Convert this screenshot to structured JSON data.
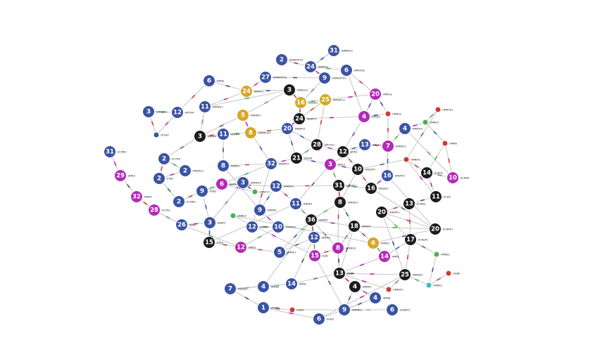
{
  "graph": {
    "colors": {
      "blue": "#3a53a4",
      "black": "#1c1c1c",
      "gold": "#d6a625",
      "magenta": "#b42ab7",
      "green": "#4caf50",
      "red": "#d03a35",
      "teal": "#3fb8b8",
      "edge": "#c9c9c9"
    },
    "nodes": [
      {
        "id": "n1",
        "num": "31",
        "color": "blue",
        "label": "HMMN03"
      },
      {
        "id": "n2",
        "num": "2",
        "color": "blue",
        "label": "HNMAPT03"
      },
      {
        "id": "n3",
        "num": "24",
        "color": "blue",
        "label": "HBMP02"
      },
      {
        "id": "n4",
        "num": "6",
        "color": "blue",
        "label": "HMRO02"
      },
      {
        "id": "n5",
        "num": "27",
        "color": "blue",
        "label": "HNMAPT02"
      },
      {
        "id": "n6",
        "num": "9",
        "color": "blue",
        "label": "HNMAPT02"
      },
      {
        "id": "n7",
        "num": "6",
        "color": "blue",
        "label": "HMNE"
      },
      {
        "id": "n8",
        "num": "24",
        "color": "gold",
        "label": "HBMO2"
      },
      {
        "id": "n9",
        "num": "3",
        "color": "black",
        "label": "HMNG01"
      },
      {
        "id": "n10",
        "num": "16",
        "color": "gold",
        "label": "HBSS01"
      },
      {
        "id": "n11",
        "num": "25",
        "color": "gold",
        "label": "HMVAP12"
      },
      {
        "id": "n12",
        "num": "20",
        "color": "magenta",
        "label": "HMNG2"
      },
      {
        "id": "n13",
        "num": "11",
        "color": "blue",
        "label": "HMNP01"
      },
      {
        "id": "n14",
        "num": "3",
        "color": "blue",
        "label": "HMNSI11"
      },
      {
        "id": "n15",
        "num": "12",
        "color": "blue",
        "label": "HNTN4"
      },
      {
        "id": "n16",
        "num": "5",
        "color": "gold",
        "label": "HMNP07"
      },
      {
        "id": "n17",
        "num": "24",
        "color": "black",
        "label": "HBAP01"
      },
      {
        "id": "n18",
        "num": "4",
        "color": "magenta",
        "label": "HMSE2"
      },
      {
        "id": "n19",
        "num": "",
        "color": "red",
        "label": "HMN02"
      },
      {
        "id": "n20",
        "num": "",
        "color": "red",
        "label": "HMNTE1"
      },
      {
        "id": "n21",
        "num": "",
        "color": "green",
        "label": "HMN03"
      },
      {
        "id": "n22",
        "num": "4",
        "color": "blue",
        "label": "HMNS01"
      },
      {
        "id": "n23",
        "num": "",
        "color": "blue",
        "label": "HTH67"
      },
      {
        "id": "n24",
        "num": "3",
        "color": "black",
        "label": "HMNP4"
      },
      {
        "id": "n25",
        "num": "11",
        "color": "blue",
        "label": "HMNP4"
      },
      {
        "id": "n26",
        "num": "8",
        "color": "gold",
        "label": "HMNPOST"
      },
      {
        "id": "n27",
        "num": "20",
        "color": "blue",
        "label": "HMNP01"
      },
      {
        "id": "n28",
        "num": "",
        "color": "red",
        "label": "HMN6"
      },
      {
        "id": "n29",
        "num": "31",
        "color": "blue",
        "label": "HCMN2"
      },
      {
        "id": "n30",
        "num": "2",
        "color": "blue",
        "label": "HCTN3"
      },
      {
        "id": "n31",
        "num": "28",
        "color": "black",
        "label": "HMTOF1"
      },
      {
        "id": "n32",
        "num": "21",
        "color": "black",
        "label": "HBSS6"
      },
      {
        "id": "n33",
        "num": "12",
        "color": "black",
        "label": "HCD1"
      },
      {
        "id": "n34",
        "num": "13",
        "color": "blue",
        "label": "HMCF1"
      },
      {
        "id": "n35",
        "num": "7",
        "color": "magenta",
        "label": "HMNE01"
      },
      {
        "id": "n36",
        "num": "8",
        "color": "blue",
        "label": "HMNP2"
      },
      {
        "id": "n37",
        "num": "32",
        "color": "blue",
        "label": "HMNP0T"
      },
      {
        "id": "n38",
        "num": "2",
        "color": "blue",
        "label": "HMNPH1"
      },
      {
        "id": "n39",
        "num": "3",
        "color": "magenta",
        "label": "HMS3"
      },
      {
        "id": "n40",
        "num": "10",
        "color": "black",
        "label": "HNSAP1"
      },
      {
        "id": "n41",
        "num": "",
        "color": "red",
        "label": "HMNI41"
      },
      {
        "id": "n42",
        "num": "14",
        "color": "black",
        "label": "HUBSS"
      },
      {
        "id": "n43",
        "num": "10",
        "color": "magenta",
        "label": "HCNNE"
      },
      {
        "id": "n44",
        "num": "29",
        "color": "magenta",
        "label": "HMKZ"
      },
      {
        "id": "n45",
        "num": "2",
        "color": "blue",
        "label": "HTN2"
      },
      {
        "id": "n46",
        "num": "6",
        "color": "magenta",
        "label": "HBP02"
      },
      {
        "id": "n47",
        "num": "3",
        "color": "blue",
        "label": "HMNP03"
      },
      {
        "id": "n48",
        "num": "",
        "color": "green",
        "label": "HMNFY2"
      },
      {
        "id": "n49",
        "num": "12",
        "color": "blue",
        "label": "HMNP01"
      },
      {
        "id": "n50",
        "num": "31",
        "color": "black",
        "label": "HMNP01"
      },
      {
        "id": "n51",
        "num": "16",
        "color": "black",
        "label": "HBSS01"
      },
      {
        "id": "n52",
        "num": "16",
        "color": "blue",
        "label": "HMSPT2"
      },
      {
        "id": "n53",
        "num": "11",
        "color": "black",
        "label": "HCD6"
      },
      {
        "id": "n54",
        "num": "32",
        "color": "magenta",
        "label": "HMN4"
      },
      {
        "id": "n55",
        "num": "9",
        "color": "blue",
        "label": "HSN2"
      },
      {
        "id": "n56",
        "num": "2",
        "color": "blue",
        "label": "HCMN3"
      },
      {
        "id": "n57",
        "num": "13",
        "color": "black",
        "label": "HCNNe"
      },
      {
        "id": "n58",
        "num": "28",
        "color": "magenta",
        "label": "HCTN2"
      },
      {
        "id": "n59",
        "num": "9",
        "color": "blue",
        "label": "HMNP4"
      },
      {
        "id": "n60",
        "num": "11",
        "color": "blue",
        "label": "HMNP3"
      },
      {
        "id": "n61",
        "num": "8",
        "color": "black",
        "label": "HMNAF1"
      },
      {
        "id": "n62",
        "num": "20",
        "color": "black",
        "label": "HMNP01"
      },
      {
        "id": "n63",
        "num": "26",
        "color": "blue",
        "label": "HBN2"
      },
      {
        "id": "n64",
        "num": "3",
        "color": "blue",
        "label": "HBNP1"
      },
      {
        "id": "n65",
        "num": "36",
        "color": "black",
        "label": "HMNP4"
      },
      {
        "id": "n66",
        "num": "18",
        "color": "black",
        "label": "HMNP4"
      },
      {
        "id": "n67",
        "num": "20",
        "color": "black",
        "label": "HCNAP1"
      },
      {
        "id": "n68",
        "num": "10",
        "color": "blue",
        "label": "HMNP01"
      },
      {
        "id": "n69",
        "num": "12",
        "color": "blue",
        "label": "HMNP0"
      },
      {
        "id": "n70",
        "num": "15",
        "color": "black",
        "label": "HTN2"
      },
      {
        "id": "n71",
        "num": "12",
        "color": "magenta",
        "label": "HMN3"
      },
      {
        "id": "n72",
        "num": "17",
        "color": "black",
        "label": "HCNaP1"
      },
      {
        "id": "n73",
        "num": "6",
        "color": "gold",
        "label": "HMNE1"
      },
      {
        "id": "n74",
        "num": "8",
        "color": "magenta",
        "label": "HMNE01"
      },
      {
        "id": "n75",
        "num": "5",
        "color": "blue",
        "label": "HMNP1"
      },
      {
        "id": "n76",
        "num": "15",
        "color": "magenta",
        "label": "HSN"
      },
      {
        "id": "n77",
        "num": "",
        "color": "green",
        "label": "HMNE2"
      },
      {
        "id": "n78",
        "num": "14",
        "color": "magenta",
        "label": "HMN2"
      },
      {
        "id": "n79",
        "num": "13",
        "color": "black",
        "label": "HSN2"
      },
      {
        "id": "n80",
        "num": "25",
        "color": "black",
        "label": "HMNEP1"
      },
      {
        "id": "n81",
        "num": "",
        "color": "red",
        "label": "HMNAT1"
      },
      {
        "id": "n82",
        "num": "7",
        "color": "blue",
        "label": "HMNSI2"
      },
      {
        "id": "n83",
        "num": "4",
        "color": "blue",
        "label": "HMNSI"
      },
      {
        "id": "n84",
        "num": "14",
        "color": "blue",
        "label": "HMN2"
      },
      {
        "id": "n85",
        "num": "4",
        "color": "black",
        "label": "HMNP3"
      },
      {
        "id": "n86",
        "num": "",
        "color": "teal",
        "label": "HMNE2"
      },
      {
        "id": "n87",
        "num": "4",
        "color": "blue",
        "label": "HMNB"
      },
      {
        "id": "n88",
        "num": "1",
        "color": "blue",
        "label": "HMNP1"
      },
      {
        "id": "n89",
        "num": "",
        "color": "red",
        "label": "HGN3"
      },
      {
        "id": "n90",
        "num": "9",
        "color": "blue",
        "label": "HMNP01"
      },
      {
        "id": "n91",
        "num": "6",
        "color": "blue",
        "label": "HGMP01"
      },
      {
        "id": "n92",
        "num": "6",
        "color": "blue",
        "label": "HGN3"
      },
      {
        "id": "n93",
        "num": "12",
        "color": "blue",
        "label": "HMNP1"
      },
      {
        "id": "n94",
        "num": "",
        "color": "green",
        "label": "HMNE1"
      },
      {
        "id": "n95",
        "num": "13",
        "color": "black",
        "label": "HSNN"
      },
      {
        "id": "n96",
        "num": "",
        "color": "red",
        "label": "HGNE"
      }
    ],
    "edges": [
      [
        "n1",
        "n3"
      ],
      [
        "n2",
        "n3"
      ],
      [
        "n3",
        "n4"
      ],
      [
        "n3",
        "n6"
      ],
      [
        "n5",
        "n6"
      ],
      [
        "n4",
        "n12"
      ],
      [
        "n6",
        "n10"
      ],
      [
        "n5",
        "n8"
      ],
      [
        "n7",
        "n8"
      ],
      [
        "n7",
        "n15"
      ],
      [
        "n14",
        "n15"
      ],
      [
        "n15",
        "n23"
      ],
      [
        "n8",
        "n9"
      ],
      [
        "n9",
        "n10"
      ],
      [
        "n10",
        "n11"
      ],
      [
        "n11",
        "n12"
      ],
      [
        "n12",
        "n18"
      ],
      [
        "n11",
        "n17"
      ],
      [
        "n9",
        "n16"
      ],
      [
        "n16",
        "n26"
      ],
      [
        "n16",
        "n24"
      ],
      [
        "n8",
        "n13"
      ],
      [
        "n13",
        "n24"
      ],
      [
        "n17",
        "n18"
      ],
      [
        "n18",
        "n19"
      ],
      [
        "n19",
        "n35"
      ],
      [
        "n20",
        "n21"
      ],
      [
        "n21",
        "n22"
      ],
      [
        "n21",
        "n28"
      ],
      [
        "n28",
        "n43"
      ],
      [
        "n22",
        "n35"
      ],
      [
        "n17",
        "n27"
      ],
      [
        "n27",
        "n32"
      ],
      [
        "n26",
        "n27"
      ],
      [
        "n25",
        "n26"
      ],
      [
        "n24",
        "n25"
      ],
      [
        "n25",
        "n36"
      ],
      [
        "n24",
        "n30"
      ],
      [
        "n30",
        "n38"
      ],
      [
        "n29",
        "n44"
      ],
      [
        "n44",
        "n54"
      ],
      [
        "n54",
        "n58"
      ],
      [
        "n58",
        "n63"
      ],
      [
        "n31",
        "n33"
      ],
      [
        "n33",
        "n34"
      ],
      [
        "n34",
        "n35"
      ],
      [
        "n31",
        "n32"
      ],
      [
        "n32",
        "n37"
      ],
      [
        "n37",
        "n26"
      ],
      [
        "n36",
        "n37"
      ],
      [
        "n37",
        "n46"
      ],
      [
        "n38",
        "n45"
      ],
      [
        "n45",
        "n56"
      ],
      [
        "n56",
        "n55"
      ],
      [
        "n55",
        "n46"
      ],
      [
        "n46",
        "n48"
      ],
      [
        "n48",
        "n47"
      ],
      [
        "n47",
        "n55"
      ],
      [
        "n47",
        "n64"
      ],
      [
        "n63",
        "n64"
      ],
      [
        "n64",
        "n70"
      ],
      [
        "n70",
        "n71"
      ],
      [
        "n71",
        "n68"
      ],
      [
        "n68",
        "n59"
      ],
      [
        "n59",
        "n49"
      ],
      [
        "n49",
        "n50"
      ],
      [
        "n50",
        "n39"
      ],
      [
        "n39",
        "n40"
      ],
      [
        "n40",
        "n41"
      ],
      [
        "n41",
        "n42"
      ],
      [
        "n42",
        "n43"
      ],
      [
        "n42",
        "n53"
      ],
      [
        "n53",
        "n57"
      ],
      [
        "n57",
        "n62"
      ],
      [
        "n62",
        "n72"
      ],
      [
        "n72",
        "n94"
      ],
      [
        "n94",
        "n86"
      ],
      [
        "n86",
        "n96"
      ],
      [
        "n86",
        "n80"
      ],
      [
        "n80",
        "n95"
      ],
      [
        "n95",
        "n85"
      ],
      [
        "n85",
        "n87"
      ],
      [
        "n87",
        "n92"
      ],
      [
        "n92",
        "n80"
      ],
      [
        "n85",
        "n90"
      ],
      [
        "n90",
        "n91"
      ],
      [
        "n91",
        "n89"
      ],
      [
        "n89",
        "n88"
      ],
      [
        "n88",
        "n82"
      ],
      [
        "n82",
        "n83"
      ],
      [
        "n83",
        "n84"
      ],
      [
        "n84",
        "n95"
      ],
      [
        "n84",
        "n93"
      ],
      [
        "n93",
        "n65"
      ],
      [
        "n65",
        "n60"
      ],
      [
        "n60",
        "n49"
      ],
      [
        "n65",
        "n74"
      ],
      [
        "n74",
        "n76"
      ],
      [
        "n76",
        "n93"
      ],
      [
        "n74",
        "n66"
      ],
      [
        "n66",
        "n61"
      ],
      [
        "n61",
        "n50"
      ],
      [
        "n50",
        "n51"
      ],
      [
        "n51",
        "n52"
      ],
      [
        "n52",
        "n35"
      ],
      [
        "n51",
        "n40"
      ],
      [
        "n66",
        "n67"
      ],
      [
        "n67",
        "n62"
      ],
      [
        "n67",
        "n51"
      ],
      [
        "n66",
        "n73"
      ],
      [
        "n73",
        "n78"
      ],
      [
        "n78",
        "n95"
      ],
      [
        "n78",
        "n72"
      ],
      [
        "n72",
        "n57"
      ],
      [
        "n74",
        "n95"
      ],
      [
        "n75",
        "n71"
      ],
      [
        "n75",
        "n65"
      ],
      [
        "n69",
        "n37"
      ],
      [
        "n69",
        "n68"
      ],
      [
        "n59",
        "n36"
      ],
      [
        "n39",
        "n32"
      ],
      [
        "n33",
        "n40"
      ],
      [
        "n34",
        "n39"
      ],
      [
        "n18",
        "n33"
      ],
      [
        "n27",
        "n31"
      ],
      [
        "n11",
        "n31"
      ],
      [
        "n65",
        "n61"
      ],
      [
        "n65",
        "n66"
      ],
      [
        "n93",
        "n75"
      ],
      [
        "n82",
        "n84"
      ],
      [
        "n61",
        "n40"
      ],
      [
        "n66",
        "n95"
      ],
      [
        "n73",
        "n67"
      ],
      [
        "n80",
        "n72"
      ],
      [
        "n77",
        "n73"
      ],
      [
        "n77",
        "n76"
      ],
      [
        "n79",
        "n74"
      ],
      [
        "n79",
        "n85"
      ],
      [
        "n81",
        "n80"
      ],
      [
        "n81",
        "n95"
      ],
      [
        "n60",
        "n39"
      ],
      [
        "n49",
        "n46"
      ],
      [
        "n71",
        "n63"
      ],
      [
        "n70",
        "n60"
      ],
      [
        "n64",
        "n55"
      ],
      [
        "n45",
        "n30"
      ],
      [
        "n22",
        "n43"
      ],
      [
        "n53",
        "n41"
      ],
      [
        "n62",
        "n80"
      ],
      [
        "n52",
        "n67"
      ],
      [
        "n83",
        "n65"
      ],
      [
        "n88",
        "n92"
      ],
      [
        "n90",
        "n87"
      ],
      [
        "n14",
        "n23"
      ],
      [
        "n9",
        "n13"
      ],
      [
        "n10",
        "n17"
      ],
      [
        "n12",
        "n19"
      ],
      [
        "n4",
        "n18"
      ],
      [
        "n28",
        "n42"
      ],
      [
        "n20",
        "n41"
      ],
      [
        "n76",
        "n90"
      ],
      [
        "n50",
        "n74"
      ]
    ]
  }
}
